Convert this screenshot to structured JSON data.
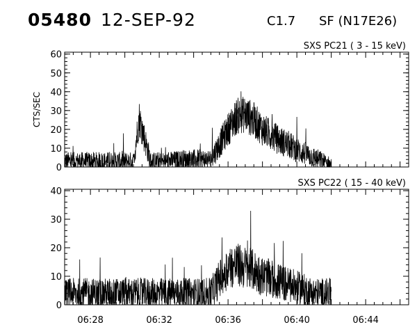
{
  "header": {
    "event_id": "05480",
    "date": "12-SEP-92",
    "goes_class": "C1.7",
    "flare_info": "SF (N17E26)"
  },
  "chart_data": [
    {
      "type": "line",
      "title": "SXS PC21  (  3 - 15 keV)",
      "ylabel": "CTS/SEC",
      "xlim": [
        "06:26:30",
        "06:46:30"
      ],
      "ylim": [
        0,
        61
      ],
      "y_ticks": [
        0,
        10,
        20,
        30,
        40,
        50,
        60
      ],
      "x": [
        "06:26:30",
        "06:27:30",
        "06:28:30",
        "06:29:30",
        "06:30:30",
        "06:30:50",
        "06:31:30",
        "06:32:30",
        "06:33:30",
        "06:34:00",
        "06:34:30",
        "06:35:00",
        "06:35:30",
        "06:36:00",
        "06:36:30",
        "06:37:00",
        "06:37:30",
        "06:38:00",
        "06:38:30",
        "06:39:00",
        "06:39:30",
        "06:40:00",
        "06:40:30",
        "06:41:00",
        "06:41:30",
        "06:42:00"
      ],
      "values": [
        3,
        3,
        3,
        3,
        3,
        26,
        3,
        3,
        4,
        4,
        4,
        4,
        12,
        20,
        27,
        28,
        25,
        20,
        17,
        14,
        12,
        9,
        7,
        5,
        3,
        1
      ],
      "grid": false
    },
    {
      "type": "line",
      "title": "SXS PC22  ( 15 - 40 keV)",
      "ylabel": "",
      "xlim": [
        "06:26:30",
        "06:46:30"
      ],
      "ylim": [
        0,
        40.5
      ],
      "y_ticks": [
        0,
        10,
        20,
        30,
        40
      ],
      "x_tick_labels": [
        "06:28",
        "06:32",
        "06:36",
        "06:40",
        "06:44"
      ],
      "x": [
        "06:26:30",
        "06:27:30",
        "06:28:30",
        "06:29:30",
        "06:30:30",
        "06:31:30",
        "06:32:30",
        "06:33:30",
        "06:34:00",
        "06:34:30",
        "06:35:00",
        "06:35:30",
        "06:36:00",
        "06:36:30",
        "06:37:00",
        "06:37:30",
        "06:38:00",
        "06:38:30",
        "06:39:00",
        "06:39:30",
        "06:40:00",
        "06:40:30",
        "06:41:00",
        "06:41:30",
        "06:42:00"
      ],
      "values": [
        4,
        4,
        4,
        4,
        4,
        4,
        4,
        4,
        4,
        4,
        4,
        9,
        13,
        14,
        13,
        12,
        10,
        9,
        8,
        7,
        6,
        5,
        4,
        4,
        4
      ],
      "grid": false
    }
  ]
}
